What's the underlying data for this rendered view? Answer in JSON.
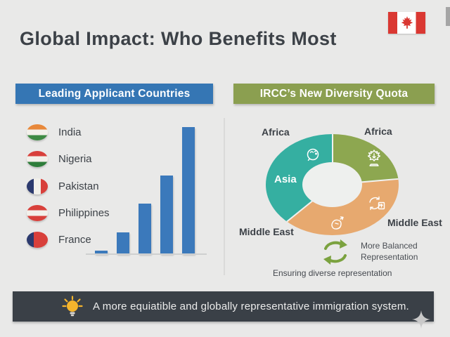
{
  "page": {
    "title": "Global Impact: Who Benefits Most",
    "background_color": "#e9e9e8",
    "text_color": "#3c4147"
  },
  "header": {
    "flag_icon": "canada-flag-icon",
    "flag_red": "#da3832"
  },
  "left_panel": {
    "header": "Leading Applicant Countries",
    "header_color": "#3576b4",
    "countries": [
      {
        "name": "India",
        "flag": {
          "type": "h",
          "colors": [
            "#e8883a",
            "#f2f0ea",
            "#3e8a43"
          ]
        }
      },
      {
        "name": "Nigeria",
        "flag": {
          "type": "h",
          "colors": [
            "#d8403b",
            "#f2f0ea",
            "#2e7d3a"
          ]
        }
      },
      {
        "name": "Pakistan",
        "flag": {
          "type": "v",
          "colors": [
            "#2c3a6e",
            "#f2f0ea",
            "#d8403b"
          ]
        }
      },
      {
        "name": "Philippines",
        "flag": {
          "type": "h",
          "colors": [
            "#d8403b",
            "#f2f0ea",
            "#d8403b"
          ]
        }
      },
      {
        "name": "France",
        "flag": {
          "type": "v",
          "colors": [
            "#2c3a6e",
            "#d8403b",
            "#d8403b"
          ]
        }
      }
    ]
  },
  "right_panel": {
    "header": "IRCC’s New Diversity Quota",
    "header_color": "#8b9f50",
    "labels": {
      "africa_left": "Africa",
      "africa_right": "Africa",
      "asia": "Asia",
      "middle_east_left": "Middle East",
      "middle_east_right": "Middle East"
    },
    "balanced_note": "More Balanced\nRepresentation",
    "caption": "Ensuring diverse representation"
  },
  "footer": {
    "banner_text": "A more equiatible and globally representative immigration system.",
    "banner_color": "#3a4047",
    "bulb_color": "#f6b52c"
  },
  "icons": {
    "canada-flag-icon": "red maple leaf flag",
    "lightbulb-icon": "💡",
    "refresh-arrows-icon": "🔄",
    "brain-icon": "doodle head/brain (white outline)",
    "maple-leaf-icon": "maple leaf with down arrow (white outline)",
    "recycle-box-icon": "box with circular arrows (white outline)",
    "hand-icon": "hand with arrow (white outline)",
    "sparkle-icon": "four-point gray star"
  },
  "chart_data": [
    {
      "type": "bar",
      "title": "Leading Applicant Countries",
      "categories": [
        "India",
        "Nigeria",
        "Pakistan",
        "Philippines",
        "France"
      ],
      "values": [
        3,
        17,
        40,
        62,
        100
      ],
      "value_note": "bars are unlabeled; values estimated as % of tallest bar, ascending left to right",
      "bar_color": "#3b79bb",
      "xlabel": "",
      "ylabel": "",
      "grid": false,
      "legend": "flag list at left"
    },
    {
      "type": "pie",
      "donut": true,
      "title": "IRCC’s New Diversity Quota",
      "start": "12 o’clock, clockwise",
      "slices": [
        {
          "label": "Africa",
          "value_deg": 85,
          "pct": 24,
          "color": "#8da750"
        },
        {
          "label": "Middle East",
          "value_deg": 146,
          "pct": 40,
          "color": "#e7a96f"
        },
        {
          "label": "Asia",
          "value_deg": 129,
          "pct": 36,
          "color": "#35afa1"
        }
      ],
      "hole_color": "#eef0ee",
      "caption": "Ensuring diverse representation"
    }
  ]
}
